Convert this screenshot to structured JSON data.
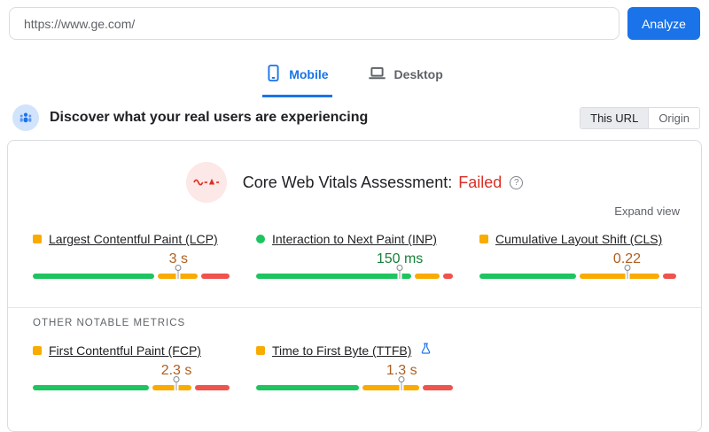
{
  "url_bar": {
    "value": "https://www.ge.com/",
    "analyze_label": "Analyze"
  },
  "tabs": [
    {
      "label": "Mobile"
    },
    {
      "label": "Desktop"
    }
  ],
  "field_header": {
    "heading": "Discover what your real users are experiencing",
    "toggle": {
      "options": [
        "This URL",
        "Origin"
      ],
      "selected": "This URL"
    }
  },
  "assessment": {
    "label": "Core Web Vitals Assessment:",
    "status": "Failed",
    "help_glyph": "?"
  },
  "expand_view_label": "Expand view",
  "other_metrics_label": "OTHER NOTABLE METRICS",
  "metrics": {
    "core": [
      {
        "title": "Largest Contentful Paint (LCP)",
        "value": "3 s",
        "rating": "needs-improvement",
        "marker_pct": 74,
        "distribution": {
          "good": 64,
          "needs_improvement": 21,
          "poor": 15
        },
        "experimental": false
      },
      {
        "title": "Interaction to Next Paint (INP)",
        "value": "150 ms",
        "rating": "good",
        "marker_pct": 73,
        "distribution": {
          "good": 82,
          "needs_improvement": 13,
          "poor": 5
        },
        "experimental": false
      },
      {
        "title": "Cumulative Layout Shift (CLS)",
        "value": "0.22",
        "rating": "needs-improvement",
        "marker_pct": 75,
        "distribution": {
          "good": 51,
          "needs_improvement": 42,
          "poor": 7
        },
        "experimental": false
      }
    ],
    "other": [
      {
        "title": "First Contentful Paint (FCP)",
        "value": "2.3 s",
        "rating": "needs-improvement",
        "marker_pct": 73,
        "distribution": {
          "good": 61,
          "needs_improvement": 21,
          "poor": 18
        },
        "experimental": false
      },
      {
        "title": "Time to First Byte (TTFB)",
        "value": "1.3 s",
        "rating": "needs-improvement",
        "marker_pct": 74,
        "distribution": {
          "good": 54,
          "needs_improvement": 30,
          "poor": 16
        },
        "experimental": true
      }
    ]
  },
  "colors": {
    "accent_blue": "#1a73e8",
    "failed_red": "#d93025",
    "bar_good": "#1ec45f",
    "bar_needs_improvement": "#f9ab00",
    "bar_poor": "#ee534e",
    "value_good_text": "#188038",
    "value_needs_improvement_text": "#b05e1e"
  }
}
